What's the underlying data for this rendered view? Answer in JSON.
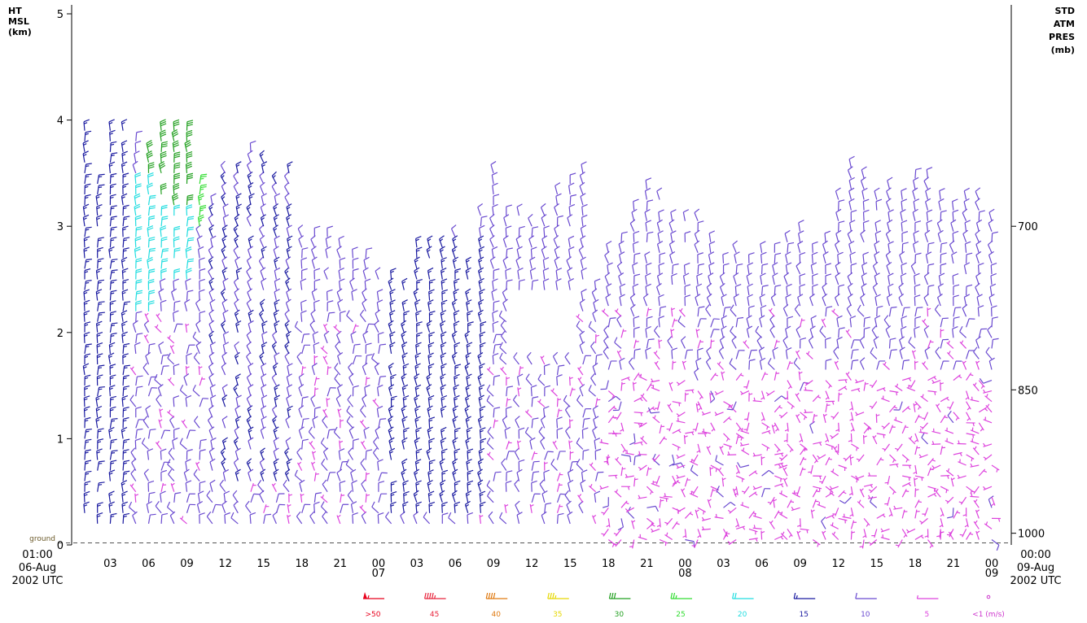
{
  "chart_data": {
    "type": "wind-profile",
    "left_axis": {
      "title_lines": [
        "HT",
        "MSL",
        "(km)"
      ],
      "ticks": [
        0,
        1,
        2,
        3,
        4,
        5
      ],
      "range": [
        0,
        5
      ]
    },
    "right_axis": {
      "title_lines": [
        "STD",
        "ATM",
        "PRES",
        "(mb)"
      ],
      "ticks": [
        {
          "label": "700",
          "height_km": 3.0
        },
        {
          "label": "850",
          "height_km": 1.46
        },
        {
          "label": "1000",
          "height_km": 0.11
        }
      ]
    },
    "ground_label": "ground",
    "ground_height_km": 0.05,
    "x_axis": {
      "start": {
        "time": "01:00",
        "date": "06-Aug",
        "year_utc": "2002 UTC"
      },
      "end": {
        "time": "00:00",
        "date": "09-Aug",
        "year_utc": "2002 UTC"
      },
      "hours_span": 71,
      "ticks": [
        {
          "h": 2,
          "label": "03"
        },
        {
          "h": 5,
          "label": "06"
        },
        {
          "h": 8,
          "label": "09"
        },
        {
          "h": 11,
          "label": "12"
        },
        {
          "h": 14,
          "label": "15"
        },
        {
          "h": 17,
          "label": "18"
        },
        {
          "h": 20,
          "label": "21"
        },
        {
          "h": 23,
          "label": "00",
          "sub": "07"
        },
        {
          "h": 26,
          "label": "03"
        },
        {
          "h": 29,
          "label": "06"
        },
        {
          "h": 32,
          "label": "09"
        },
        {
          "h": 35,
          "label": "12"
        },
        {
          "h": 38,
          "label": "15"
        },
        {
          "h": 41,
          "label": "18"
        },
        {
          "h": 44,
          "label": "21"
        },
        {
          "h": 47,
          "label": "00",
          "sub": "08"
        },
        {
          "h": 50,
          "label": "03"
        },
        {
          "h": 53,
          "label": "06"
        },
        {
          "h": 56,
          "label": "09"
        },
        {
          "h": 59,
          "label": "12"
        },
        {
          "h": 62,
          "label": "15"
        },
        {
          "h": 65,
          "label": "18"
        },
        {
          "h": 68,
          "label": "21"
        },
        {
          "h": 71,
          "label": "00",
          "sub": "09"
        }
      ]
    },
    "profiles": [
      {
        "h": 0,
        "top_km": 3.9
      },
      {
        "h": 1,
        "top_km": 3.5
      },
      {
        "h": 2,
        "top_km": 3.9
      },
      {
        "h": 3,
        "top_km": 3.9
      },
      {
        "h": 4,
        "top_km": 3.9
      },
      {
        "h": 5,
        "top_km": 3.7
      },
      {
        "h": 6,
        "top_km": 3.9
      },
      {
        "h": 7,
        "top_km": 3.9
      },
      {
        "h": 8,
        "top_km": 3.9
      },
      {
        "h": 9,
        "top_km": 3.4
      },
      {
        "h": 10,
        "top_km": 3.2
      },
      {
        "h": 11,
        "top_km": 3.6
      },
      {
        "h": 12,
        "top_km": 3.5
      },
      {
        "h": 13,
        "top_km": 3.7
      },
      {
        "h": 14,
        "top_km": 3.6
      },
      {
        "h": 15,
        "top_km": 3.5
      },
      {
        "h": 16,
        "top_km": 3.5
      },
      {
        "h": 17,
        "top_km": 2.9
      },
      {
        "h": 18,
        "top_km": 2.9
      },
      {
        "h": 19,
        "top_km": 2.9
      },
      {
        "h": 20,
        "top_km": 2.8
      },
      {
        "h": 21,
        "top_km": 2.7
      },
      {
        "h": 22,
        "top_km": 2.7
      },
      {
        "h": 23,
        "top_km": 2.5
      },
      {
        "h": 24,
        "top_km": 2.5
      },
      {
        "h": 25,
        "top_km": 2.4
      },
      {
        "h": 26,
        "top_km": 2.8
      },
      {
        "h": 27,
        "top_km": 2.8
      },
      {
        "h": 28,
        "top_km": 2.8
      },
      {
        "h": 29,
        "top_km": 2.9
      },
      {
        "h": 30,
        "top_km": 2.6
      },
      {
        "h": 31,
        "top_km": 3.1
      },
      {
        "h": 32,
        "top_km": 3.5
      },
      {
        "h": 33,
        "top_km": 3.1
      },
      {
        "h": 34,
        "top_km": 3.1
      },
      {
        "h": 35,
        "top_km": 3.0
      },
      {
        "h": 36,
        "top_km": 3.1
      },
      {
        "h": 37,
        "top_km": 3.3
      },
      {
        "h": 38,
        "top_km": 3.4
      },
      {
        "h": 39,
        "top_km": 3.5
      },
      {
        "h": 40,
        "top_km": 2.4
      },
      {
        "h": 41,
        "top_km": 2.8
      },
      {
        "h": 42,
        "top_km": 2.9
      },
      {
        "h": 43,
        "top_km": 3.2
      },
      {
        "h": 44,
        "top_km": 3.4
      },
      {
        "h": 45,
        "top_km": 3.3
      },
      {
        "h": 46,
        "top_km": 3.1
      },
      {
        "h": 47,
        "top_km": 3.1
      },
      {
        "h": 48,
        "top_km": 3.1
      },
      {
        "h": 49,
        "top_km": 2.9
      },
      {
        "h": 50,
        "top_km": 2.7
      },
      {
        "h": 51,
        "top_km": 2.8
      },
      {
        "h": 52,
        "top_km": 2.7
      },
      {
        "h": 53,
        "top_km": 2.8
      },
      {
        "h": 54,
        "top_km": 2.8
      },
      {
        "h": 55,
        "top_km": 2.9
      },
      {
        "h": 56,
        "top_km": 3.0
      },
      {
        "h": 57,
        "top_km": 2.8
      },
      {
        "h": 58,
        "top_km": 2.9
      },
      {
        "h": 59,
        "top_km": 3.3
      },
      {
        "h": 60,
        "top_km": 3.6
      },
      {
        "h": 61,
        "top_km": 3.5
      },
      {
        "h": 62,
        "top_km": 3.3
      },
      {
        "h": 63,
        "top_km": 3.4
      },
      {
        "h": 64,
        "top_km": 3.3
      },
      {
        "h": 65,
        "top_km": 3.5
      },
      {
        "h": 66,
        "top_km": 3.5
      },
      {
        "h": 67,
        "top_km": 3.3
      },
      {
        "h": 68,
        "top_km": 3.3
      },
      {
        "h": 69,
        "top_km": 3.3
      },
      {
        "h": 70,
        "top_km": 3.3
      },
      {
        "h": 71,
        "top_km": 3.1
      }
    ],
    "gap_regions": [
      {
        "h_from": 34,
        "h_to": 38,
        "km_from": 1.8,
        "km_to": 2.4
      }
    ],
    "speed_regimes": [
      {
        "h_from": 0,
        "h_to": 3,
        "km_from": 0.1,
        "km_to": 4.0,
        "speed": 15,
        "dir_deg": 270
      },
      {
        "h_from": 3,
        "h_to": 5,
        "km_from": 2.2,
        "km_to": 3.5,
        "speed": 20,
        "dir_deg": 270
      },
      {
        "h_from": 5,
        "h_to": 8,
        "km_from": 3.2,
        "km_to": 4.0,
        "speed": 30,
        "dir_deg": 265
      },
      {
        "h_from": 5,
        "h_to": 8,
        "km_from": 2.5,
        "km_to": 3.2,
        "speed": 20,
        "dir_deg": 270
      },
      {
        "h_from": 8,
        "h_to": 9,
        "km_from": 3.0,
        "km_to": 3.5,
        "speed": 25,
        "dir_deg": 270
      },
      {
        "h_from": 24,
        "h_to": 31,
        "km_from": 0.3,
        "km_to": 2.9,
        "speed": 15,
        "dir_deg": 260
      },
      {
        "h_from": 10,
        "h_to": 16,
        "km_from": 0.6,
        "km_to": 3.7,
        "speed": 12,
        "dir_deg": 250
      }
    ],
    "legend": [
      {
        "label": ">50",
        "color": "#e8001c",
        "speed": 55
      },
      {
        "label": "45",
        "color": "#e8243c",
        "speed": 45
      },
      {
        "label": "40",
        "color": "#e07a10",
        "speed": 40
      },
      {
        "label": "35",
        "color": "#e6d800",
        "speed": 35
      },
      {
        "label": "30",
        "color": "#22a020",
        "speed": 30
      },
      {
        "label": "25",
        "color": "#33dd33",
        "speed": 25
      },
      {
        "label": "20",
        "color": "#22dde0",
        "speed": 20
      },
      {
        "label": "15",
        "color": "#1a1aa0",
        "speed": 15
      },
      {
        "label": "10",
        "color": "#6a4ad0",
        "speed": 10
      },
      {
        "label": "5",
        "color": "#dd44dd",
        "speed": 5
      },
      {
        "label": "<1  (m/s)",
        "color": "#cc33cc",
        "speed": 0
      }
    ]
  }
}
